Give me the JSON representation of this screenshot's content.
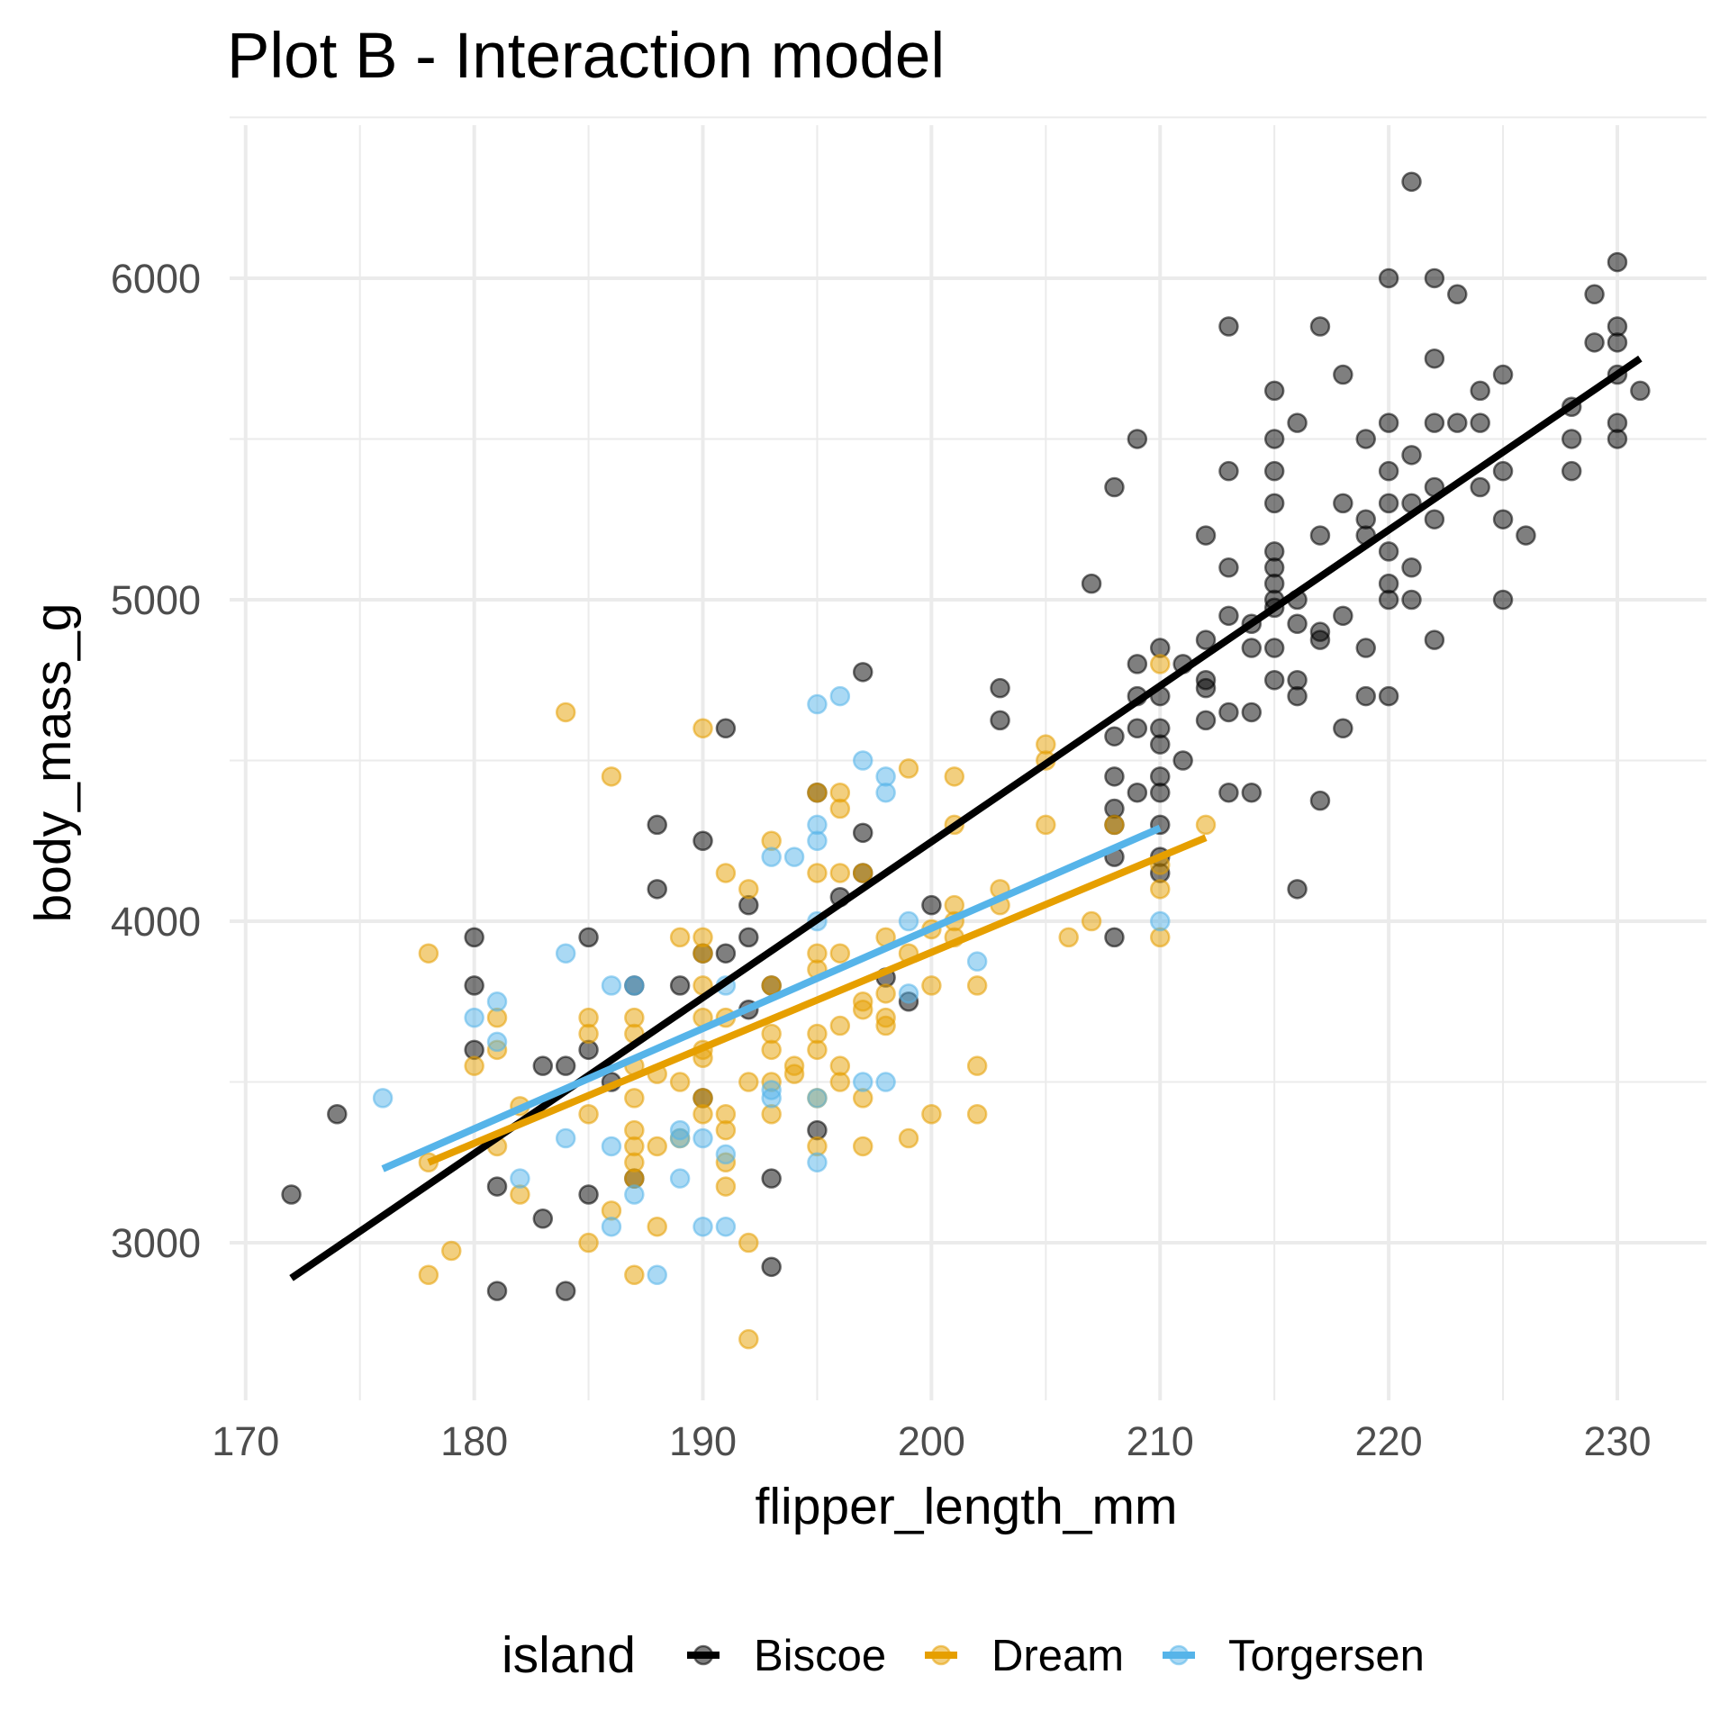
{
  "chart_data": {
    "type": "scatter",
    "title": "Plot B - Interaction model",
    "xlabel": "flipper_length_mm",
    "ylabel": "body_mass_g",
    "xlim": [
      169.3,
      233.9
    ],
    "ylim": [
      2510,
      6476
    ],
    "x_ticks": [
      170,
      180,
      190,
      200,
      210,
      220,
      230
    ],
    "y_ticks": [
      3000,
      4000,
      5000,
      6000
    ],
    "grid": true,
    "legend": {
      "title": "island",
      "placement": "bottom"
    },
    "series": [
      {
        "name": "Biscoe",
        "color": "#000000",
        "points": [
          [
            172,
            3150
          ],
          [
            174,
            3400
          ],
          [
            180,
            3950
          ],
          [
            180,
            3800
          ],
          [
            180,
            3600
          ],
          [
            181,
            3175
          ],
          [
            181,
            2850
          ],
          [
            183,
            3550
          ],
          [
            183,
            3075
          ],
          [
            184,
            3550
          ],
          [
            184,
            2850
          ],
          [
            185,
            3950
          ],
          [
            185,
            3600
          ],
          [
            185,
            3150
          ],
          [
            186,
            3500
          ],
          [
            187,
            3800
          ],
          [
            187,
            3200
          ],
          [
            188,
            4300
          ],
          [
            188,
            4100
          ],
          [
            189,
            3800
          ],
          [
            190,
            4250
          ],
          [
            190,
            3900
          ],
          [
            190,
            3450
          ],
          [
            191,
            4600
          ],
          [
            191,
            3900
          ],
          [
            192,
            4050
          ],
          [
            192,
            3950
          ],
          [
            192,
            3725
          ],
          [
            193,
            3200
          ],
          [
            193,
            2925
          ],
          [
            193,
            3800
          ],
          [
            195,
            4400
          ],
          [
            195,
            3350
          ],
          [
            196,
            4075
          ],
          [
            197,
            4775
          ],
          [
            197,
            4275
          ],
          [
            197,
            4150
          ],
          [
            198,
            3825
          ],
          [
            199,
            3750
          ],
          [
            200,
            4050
          ],
          [
            203,
            4725
          ],
          [
            203,
            4625
          ],
          [
            207,
            5050
          ],
          [
            208,
            5350
          ],
          [
            208,
            4575
          ],
          [
            208,
            4450
          ],
          [
            208,
            4350
          ],
          [
            208,
            4300
          ],
          [
            208,
            4200
          ],
          [
            208,
            3950
          ],
          [
            209,
            5500
          ],
          [
            209,
            4800
          ],
          [
            209,
            4700
          ],
          [
            209,
            4600
          ],
          [
            209,
            4400
          ],
          [
            210,
            4850
          ],
          [
            210,
            4700
          ],
          [
            210,
            4600
          ],
          [
            210,
            4550
          ],
          [
            210,
            4450
          ],
          [
            210,
            4400
          ],
          [
            210,
            4300
          ],
          [
            210,
            4200
          ],
          [
            210,
            4150
          ],
          [
            211,
            4800
          ],
          [
            211,
            4500
          ],
          [
            212,
            5200
          ],
          [
            212,
            4875
          ],
          [
            212,
            4750
          ],
          [
            212,
            4725
          ],
          [
            212,
            4625
          ],
          [
            213,
            5850
          ],
          [
            213,
            5400
          ],
          [
            213,
            5100
          ],
          [
            213,
            4950
          ],
          [
            213,
            4650
          ],
          [
            213,
            4400
          ],
          [
            214,
            4925
          ],
          [
            214,
            4850
          ],
          [
            214,
            4650
          ],
          [
            214,
            4400
          ],
          [
            215,
            5650
          ],
          [
            215,
            5500
          ],
          [
            215,
            5400
          ],
          [
            215,
            5300
          ],
          [
            215,
            5150
          ],
          [
            215,
            5100
          ],
          [
            215,
            5050
          ],
          [
            215,
            5000
          ],
          [
            215,
            4975
          ],
          [
            215,
            4850
          ],
          [
            215,
            4750
          ],
          [
            216,
            5550
          ],
          [
            216,
            5000
          ],
          [
            216,
            4925
          ],
          [
            216,
            4750
          ],
          [
            216,
            4700
          ],
          [
            216,
            4100
          ],
          [
            217,
            5850
          ],
          [
            217,
            5200
          ],
          [
            217,
            4900
          ],
          [
            217,
            4875
          ],
          [
            217,
            4375
          ],
          [
            218,
            5700
          ],
          [
            218,
            5300
          ],
          [
            218,
            4950
          ],
          [
            218,
            4600
          ],
          [
            219,
            5500
          ],
          [
            219,
            5250
          ],
          [
            219,
            5200
          ],
          [
            219,
            4850
          ],
          [
            219,
            4700
          ],
          [
            220,
            6000
          ],
          [
            220,
            5550
          ],
          [
            220,
            5400
          ],
          [
            220,
            5300
          ],
          [
            220,
            5150
          ],
          [
            220,
            5050
          ],
          [
            220,
            5000
          ],
          [
            220,
            4700
          ],
          [
            221,
            6300
          ],
          [
            221,
            5450
          ],
          [
            221,
            5300
          ],
          [
            221,
            5100
          ],
          [
            221,
            5000
          ],
          [
            222,
            6000
          ],
          [
            222,
            5750
          ],
          [
            222,
            5550
          ],
          [
            222,
            5350
          ],
          [
            222,
            5250
          ],
          [
            222,
            4875
          ],
          [
            223,
            5950
          ],
          [
            223,
            5550
          ],
          [
            224,
            5650
          ],
          [
            224,
            5550
          ],
          [
            224,
            5350
          ],
          [
            225,
            5700
          ],
          [
            225,
            5400
          ],
          [
            225,
            5250
          ],
          [
            225,
            5000
          ],
          [
            226,
            5200
          ],
          [
            228,
            5600
          ],
          [
            228,
            5500
          ],
          [
            228,
            5400
          ],
          [
            229,
            5950
          ],
          [
            229,
            5800
          ],
          [
            230,
            6050
          ],
          [
            230,
            5850
          ],
          [
            230,
            5800
          ],
          [
            230,
            5700
          ],
          [
            230,
            5550
          ],
          [
            230,
            5500
          ],
          [
            231,
            5650
          ]
        ],
        "fit": [
          [
            172,
            2890
          ],
          [
            231,
            5750
          ]
        ]
      },
      {
        "name": "Dream",
        "color": "#E69F00",
        "points": [
          [
            178,
            3900
          ],
          [
            178,
            3250
          ],
          [
            178,
            2900
          ],
          [
            179,
            2975
          ],
          [
            180,
            3550
          ],
          [
            181,
            3700
          ],
          [
            181,
            3600
          ],
          [
            181,
            3300
          ],
          [
            182,
            3425
          ],
          [
            182,
            3150
          ],
          [
            184,
            4650
          ],
          [
            185,
            3700
          ],
          [
            185,
            3650
          ],
          [
            185,
            3400
          ],
          [
            185,
            3000
          ],
          [
            186,
            4450
          ],
          [
            186,
            3100
          ],
          [
            187,
            3700
          ],
          [
            187,
            3650
          ],
          [
            187,
            3550
          ],
          [
            187,
            3450
          ],
          [
            187,
            3350
          ],
          [
            187,
            3300
          ],
          [
            187,
            3250
          ],
          [
            187,
            3200
          ],
          [
            187,
            2900
          ],
          [
            188,
            3525
          ],
          [
            188,
            3300
          ],
          [
            188,
            3050
          ],
          [
            189,
            3950
          ],
          [
            189,
            3500
          ],
          [
            189,
            3325
          ],
          [
            190,
            4600
          ],
          [
            190,
            3950
          ],
          [
            190,
            3900
          ],
          [
            190,
            3800
          ],
          [
            190,
            3700
          ],
          [
            190,
            3600
          ],
          [
            190,
            3575
          ],
          [
            190,
            3450
          ],
          [
            190,
            3400
          ],
          [
            191,
            4150
          ],
          [
            191,
            3700
          ],
          [
            191,
            3400
          ],
          [
            191,
            3350
          ],
          [
            191,
            3250
          ],
          [
            191,
            3175
          ],
          [
            192,
            4100
          ],
          [
            192,
            3500
          ],
          [
            192,
            3000
          ],
          [
            192,
            2700
          ],
          [
            193,
            4250
          ],
          [
            193,
            3800
          ],
          [
            193,
            3650
          ],
          [
            193,
            3600
          ],
          [
            193,
            3500
          ],
          [
            193,
            3400
          ],
          [
            194,
            3525
          ],
          [
            194,
            3550
          ],
          [
            195,
            4400
          ],
          [
            195,
            4150
          ],
          [
            195,
            3900
          ],
          [
            195,
            3850
          ],
          [
            195,
            3650
          ],
          [
            195,
            3600
          ],
          [
            195,
            3450
          ],
          [
            195,
            3300
          ],
          [
            196,
            4400
          ],
          [
            196,
            4350
          ],
          [
            196,
            4150
          ],
          [
            196,
            3900
          ],
          [
            196,
            3675
          ],
          [
            196,
            3500
          ],
          [
            196,
            3550
          ],
          [
            197,
            4150
          ],
          [
            197,
            3750
          ],
          [
            197,
            3725
          ],
          [
            197,
            3450
          ],
          [
            197,
            3300
          ],
          [
            198,
            3950
          ],
          [
            198,
            3775
          ],
          [
            198,
            3700
          ],
          [
            198,
            3675
          ],
          [
            199,
            4475
          ],
          [
            199,
            3900
          ],
          [
            199,
            3325
          ],
          [
            200,
            3975
          ],
          [
            200,
            3800
          ],
          [
            200,
            3400
          ],
          [
            201,
            4450
          ],
          [
            201,
            4300
          ],
          [
            201,
            4050
          ],
          [
            201,
            4000
          ],
          [
            201,
            3950
          ],
          [
            202,
            3800
          ],
          [
            202,
            3550
          ],
          [
            202,
            3400
          ],
          [
            203,
            4100
          ],
          [
            203,
            4050
          ],
          [
            205,
            4550
          ],
          [
            205,
            4500
          ],
          [
            205,
            4300
          ],
          [
            206,
            3950
          ],
          [
            207,
            4000
          ],
          [
            208,
            4300
          ],
          [
            210,
            4800
          ],
          [
            210,
            4175
          ],
          [
            210,
            4100
          ],
          [
            210,
            3950
          ],
          [
            212,
            4300
          ]
        ],
        "fit": [
          [
            178,
            3250
          ],
          [
            212,
            4260
          ]
        ]
      },
      {
        "name": "Torgersen",
        "color": "#56B4E9",
        "points": [
          [
            176,
            3450
          ],
          [
            180,
            3700
          ],
          [
            181,
            3750
          ],
          [
            181,
            3625
          ],
          [
            182,
            3200
          ],
          [
            184,
            3900
          ],
          [
            184,
            3325
          ],
          [
            186,
            3800
          ],
          [
            186,
            3300
          ],
          [
            186,
            3050
          ],
          [
            187,
            3800
          ],
          [
            187,
            3150
          ],
          [
            188,
            2900
          ],
          [
            189,
            3350
          ],
          [
            189,
            3325
          ],
          [
            189,
            3200
          ],
          [
            190,
            3325
          ],
          [
            190,
            3050
          ],
          [
            191,
            3800
          ],
          [
            191,
            3275
          ],
          [
            191,
            3050
          ],
          [
            193,
            4200
          ],
          [
            193,
            3450
          ],
          [
            193,
            3475
          ],
          [
            194,
            4200
          ],
          [
            195,
            4675
          ],
          [
            195,
            4300
          ],
          [
            195,
            4250
          ],
          [
            195,
            4000
          ],
          [
            195,
            3250
          ],
          [
            195,
            3450
          ],
          [
            196,
            4700
          ],
          [
            197,
            4500
          ],
          [
            197,
            3500
          ],
          [
            198,
            4450
          ],
          [
            198,
            4400
          ],
          [
            198,
            3500
          ],
          [
            199,
            4000
          ],
          [
            199,
            3775
          ],
          [
            202,
            3875
          ],
          [
            210,
            4000
          ]
        ],
        "fit": [
          [
            176,
            3230
          ],
          [
            210,
            4290
          ]
        ]
      }
    ]
  }
}
